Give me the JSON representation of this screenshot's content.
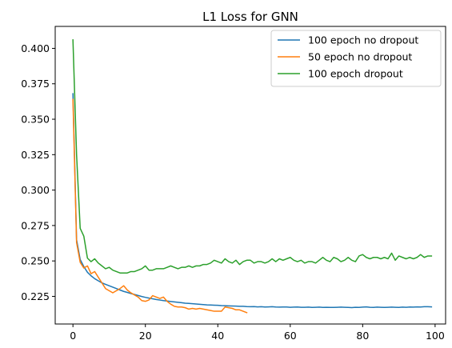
{
  "chart_data": {
    "type": "line",
    "title": "L1 Loss for GNN",
    "xlabel": "",
    "ylabel": "",
    "xlim": [
      -4.9,
      102.9
    ],
    "ylim": [
      0.2055,
      0.4155
    ],
    "xticks": [
      0,
      20,
      40,
      60,
      80,
      100
    ],
    "yticks": [
      0.225,
      0.25,
      0.275,
      0.3,
      0.325,
      0.35,
      0.375,
      0.4
    ],
    "xtick_labels": [
      "0",
      "20",
      "40",
      "60",
      "80",
      "100"
    ],
    "ytick_labels": [
      "0.225",
      "0.250",
      "0.275",
      "0.300",
      "0.325",
      "0.350",
      "0.375",
      "0.400"
    ],
    "grid": false,
    "legend_position": "top-right",
    "series": [
      {
        "name": "100 epoch no dropout",
        "color": "#1f77b4",
        "y": [
          0.368,
          0.265,
          0.251,
          0.246,
          0.242,
          0.2395,
          0.2375,
          0.236,
          0.2345,
          0.2335,
          0.2325,
          0.2315,
          0.2305,
          0.2295,
          0.2285,
          0.2278,
          0.227,
          0.2263,
          0.2256,
          0.2249,
          0.2243,
          0.2238,
          0.2233,
          0.2228,
          0.2224,
          0.222,
          0.2217,
          0.2214,
          0.2211,
          0.2208,
          0.2205,
          0.2202,
          0.22,
          0.2198,
          0.2196,
          0.2194,
          0.2192,
          0.219,
          0.2189,
          0.2188,
          0.2187,
          0.2185,
          0.2184,
          0.2183,
          0.2182,
          0.2181,
          0.218,
          0.218,
          0.2178,
          0.2177,
          0.2178,
          0.2176,
          0.2177,
          0.2175,
          0.2176,
          0.2177,
          0.2175,
          0.2174,
          0.2175,
          0.2175,
          0.2173,
          0.2174,
          0.2175,
          0.2173,
          0.2173,
          0.2174,
          0.2172,
          0.2173,
          0.2174,
          0.2172,
          0.2173,
          0.2172,
          0.2172,
          0.2173,
          0.2174,
          0.2173,
          0.2172,
          0.2171,
          0.2173,
          0.2172,
          0.2174,
          0.2176,
          0.2173,
          0.2172,
          0.2174,
          0.2173,
          0.2172,
          0.2173,
          0.2174,
          0.2173,
          0.2172,
          0.2174,
          0.2173,
          0.2175,
          0.2174,
          0.2176,
          0.2175,
          0.2177,
          0.2177,
          0.2176
        ],
        "x_start": 0
      },
      {
        "name": "50 epoch no dropout",
        "color": "#ff7f0e",
        "y": [
          0.364,
          0.263,
          0.249,
          0.245,
          0.2465,
          0.241,
          0.2425,
          0.2385,
          0.2345,
          0.2305,
          0.229,
          0.2275,
          0.229,
          0.2305,
          0.2325,
          0.2295,
          0.2275,
          0.226,
          0.2245,
          0.222,
          0.2215,
          0.2225,
          0.2255,
          0.2245,
          0.2235,
          0.2245,
          0.2215,
          0.2195,
          0.218,
          0.2175,
          0.2175,
          0.217,
          0.216,
          0.2165,
          0.216,
          0.2165,
          0.216,
          0.2155,
          0.215,
          0.2145,
          0.2145,
          0.2145,
          0.2175,
          0.217,
          0.2165,
          0.2155,
          0.2155,
          0.2145,
          0.2135
        ],
        "x_start": 0
      },
      {
        "name": "100 epoch dropout",
        "color": "#2ca02c",
        "y": [
          0.406,
          0.325,
          0.273,
          0.2675,
          0.252,
          0.2495,
          0.2515,
          0.2485,
          0.2465,
          0.2445,
          0.2455,
          0.2435,
          0.2425,
          0.2415,
          0.2415,
          0.2415,
          0.2425,
          0.2425,
          0.2435,
          0.2445,
          0.2465,
          0.2435,
          0.2435,
          0.2445,
          0.2445,
          0.2445,
          0.2455,
          0.2465,
          0.2455,
          0.2445,
          0.2455,
          0.2455,
          0.2465,
          0.2455,
          0.2465,
          0.2465,
          0.2475,
          0.2475,
          0.2485,
          0.2505,
          0.2495,
          0.2485,
          0.2515,
          0.2495,
          0.2485,
          0.2505,
          0.2475,
          0.2495,
          0.2505,
          0.2505,
          0.2485,
          0.2495,
          0.2495,
          0.2485,
          0.2495,
          0.2515,
          0.2495,
          0.2515,
          0.2505,
          0.2515,
          0.2525,
          0.2505,
          0.2495,
          0.2505,
          0.2485,
          0.2495,
          0.2495,
          0.2485,
          0.2505,
          0.2525,
          0.2505,
          0.2495,
          0.2525,
          0.2515,
          0.2495,
          0.2505,
          0.2525,
          0.2505,
          0.2495,
          0.2535,
          0.2545,
          0.2525,
          0.2515,
          0.2525,
          0.2525,
          0.2515,
          0.2525,
          0.2515,
          0.2555,
          0.2505,
          0.2535,
          0.2525,
          0.2515,
          0.2525,
          0.2515,
          0.2525,
          0.2545,
          0.2525,
          0.2535,
          0.2535
        ],
        "x_start": 0
      }
    ]
  }
}
